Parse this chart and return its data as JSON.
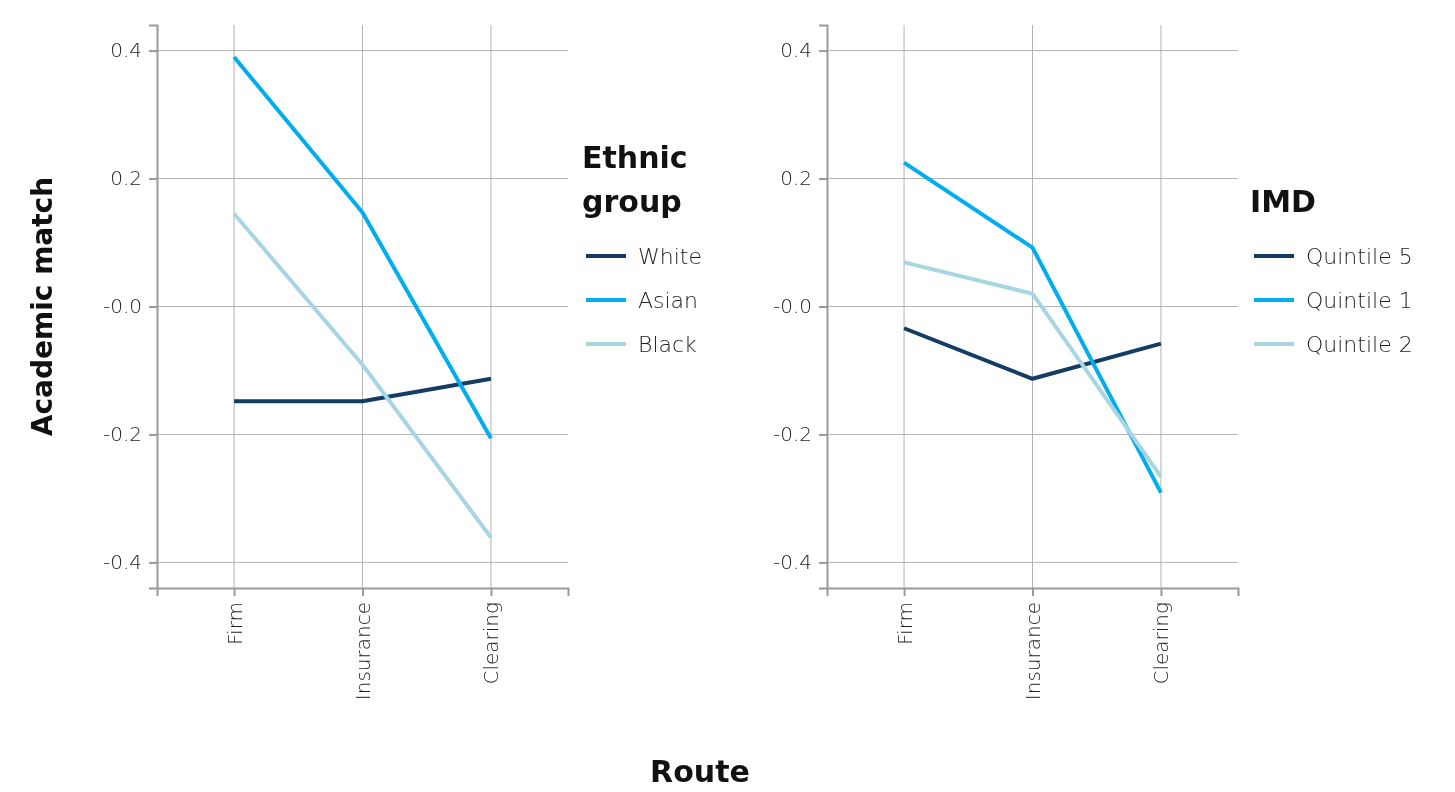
{
  "chart_data": [
    {
      "type": "line",
      "xlabel": "Route",
      "ylabel": "Academic match",
      "legend_title": "Ethnic group",
      "categories": [
        "Firm",
        "Insurance",
        "Clearing"
      ],
      "ylim": [
        -0.44,
        0.44
      ],
      "yticks": [
        -0.4,
        -0.2,
        {
          "value": 0,
          "label": "-0.0"
        },
        0.2,
        0.4
      ],
      "grid": true,
      "legend": "right",
      "line_style": "solid",
      "marker": "none",
      "series": [
        {
          "name": "White",
          "color": "#133d62",
          "values": [
            -0.148,
            -0.148,
            -0.113
          ]
        },
        {
          "name": "Asian",
          "color": "#00aeef",
          "values": [
            0.39,
            0.147,
            -0.206
          ]
        },
        {
          "name": "Black",
          "color": "#a8d5e2",
          "values": [
            0.145,
            -0.091,
            -0.361
          ]
        }
      ]
    },
    {
      "type": "line",
      "legend_title": "IMD",
      "categories": [
        "Firm",
        "Insurance",
        "Clearing"
      ],
      "ylim": [
        -0.44,
        0.44
      ],
      "yticks": [
        -0.4,
        -0.2,
        {
          "value": 0,
          "label": "-0.0"
        },
        0.2,
        0.4
      ],
      "grid": true,
      "legend": "right",
      "line_style": "solid",
      "marker": "none",
      "series": [
        {
          "name": "Quintile 5",
          "color": "#133d62",
          "values": [
            -0.034,
            -0.113,
            -0.058
          ]
        },
        {
          "name": "Quintile 1",
          "color": "#00aeef",
          "values": [
            0.225,
            0.092,
            -0.291
          ]
        },
        {
          "name": "Quintile 2",
          "color": "#a8d5e2",
          "values": [
            0.069,
            0.02,
            -0.266
          ]
        }
      ]
    }
  ]
}
